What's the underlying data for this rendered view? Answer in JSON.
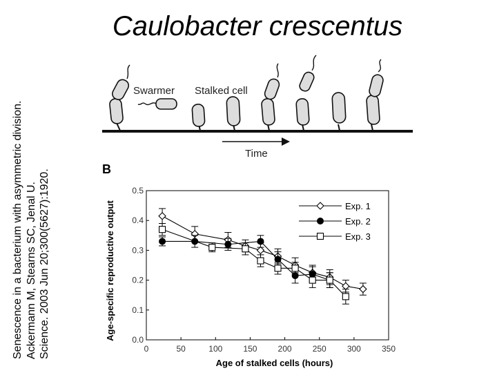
{
  "title": "Caulobacter crescentus",
  "caption": [
    "Senescence in a bacterium with asymmetric division.",
    "Ackermann M, Stearns SC, Jenal U.",
    "Science. 2003 Jun 20;300(5627):1920."
  ],
  "diagram": {
    "swarmer_label": "Swarmer",
    "stalked_label": "Stalked cell",
    "time_label": "Time"
  },
  "panel_label": "B",
  "chart_data": {
    "type": "line",
    "xlabel": "Age of stalked cells (hours)",
    "ylabel": "Age-specific reproductive output",
    "xlim": [
      0,
      350
    ],
    "ylim": [
      0,
      0.5
    ],
    "xticks": [
      "0",
      "50",
      "100",
      "150",
      "200",
      "250",
      "300",
      "350"
    ],
    "yticks": [
      "0.0",
      "0.1",
      "0.2",
      "0.3",
      "0.4",
      "0.5"
    ],
    "legend_position": "top-right",
    "grid": false,
    "series": [
      {
        "name": "Exp. 1",
        "marker": "open-diamond",
        "x": [
          23,
          70,
          118,
          143,
          165,
          190,
          215,
          240,
          265,
          288,
          313
        ],
        "y": [
          0.415,
          0.355,
          0.335,
          0.315,
          0.3,
          0.28,
          0.25,
          0.225,
          0.21,
          0.18,
          0.17
        ],
        "err": [
          0.025,
          0.025,
          0.025,
          0.02,
          0.025,
          0.025,
          0.025,
          0.025,
          0.025,
          0.02,
          0.02
        ]
      },
      {
        "name": "Exp. 2",
        "marker": "filled-circle",
        "x": [
          23,
          70,
          118,
          165,
          190,
          215,
          240,
          265
        ],
        "y": [
          0.33,
          0.33,
          0.32,
          0.33,
          0.27,
          0.215,
          0.22,
          0.2
        ],
        "err": [
          0.015,
          0.02,
          0.02,
          0.02,
          0.025,
          0.025,
          0.025,
          0.025
        ]
      },
      {
        "name": "Exp. 3",
        "marker": "open-square",
        "x": [
          23,
          95,
          143,
          165,
          190,
          215,
          240,
          265,
          288
        ],
        "y": [
          0.37,
          0.31,
          0.305,
          0.265,
          0.24,
          0.24,
          0.2,
          0.2,
          0.145
        ],
        "err": [
          0.02,
          0.015,
          0.02,
          0.02,
          0.02,
          0.02,
          0.025,
          0.025,
          0.025
        ]
      }
    ]
  }
}
